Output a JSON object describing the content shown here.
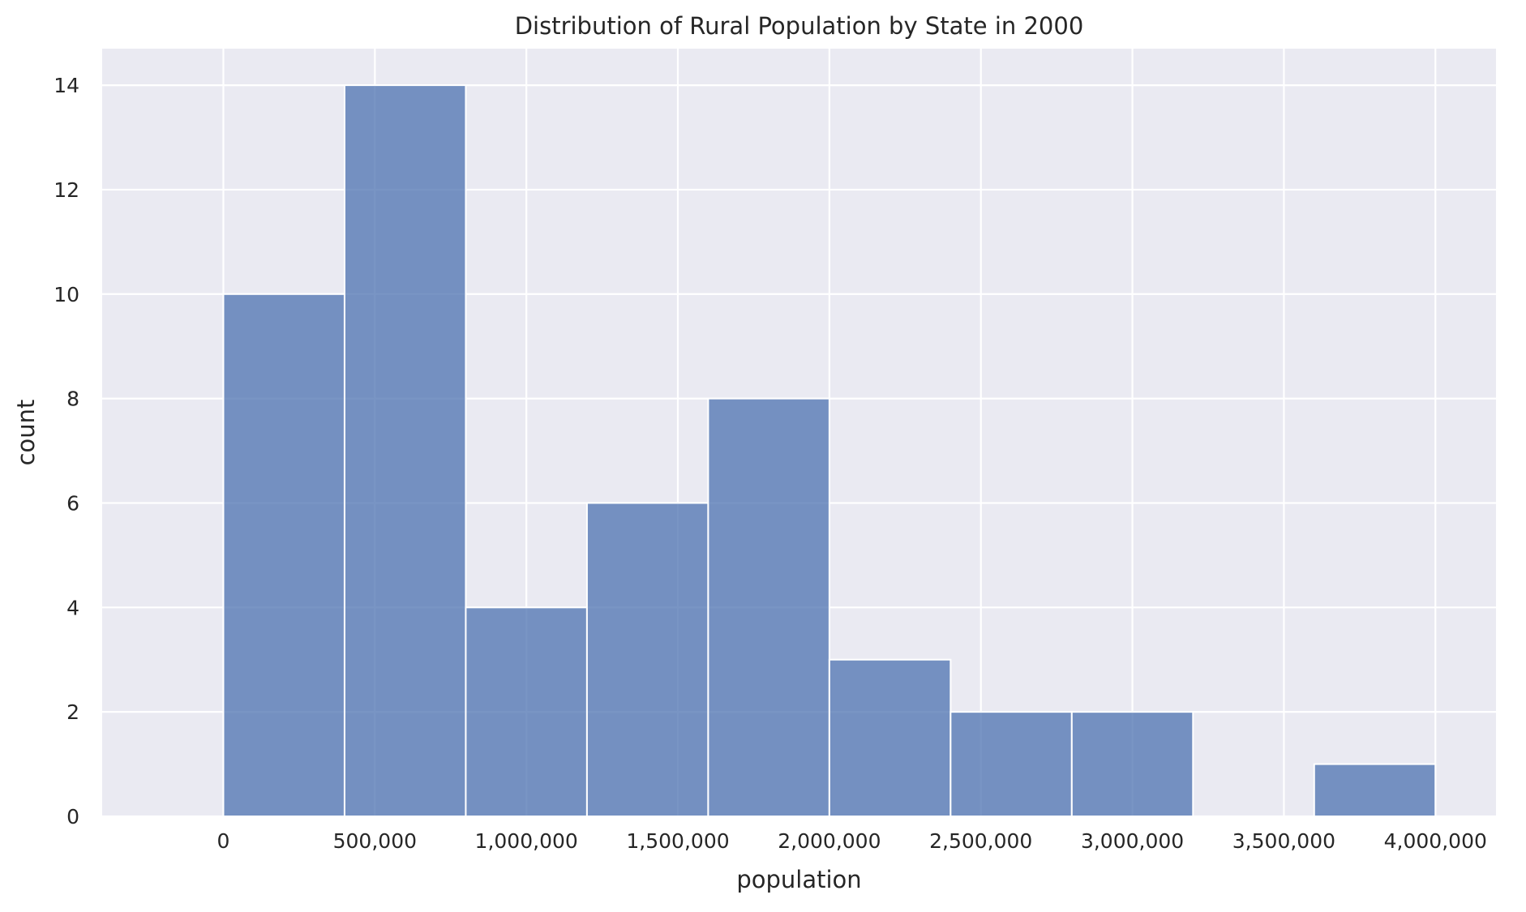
{
  "chart_data": {
    "type": "bar",
    "title": "Distribution of Rural Population by State in 2000",
    "xlabel": "population",
    "ylabel": "count",
    "xlim": [
      -400000,
      4200000
    ],
    "ylim": [
      0,
      14.7
    ],
    "x_ticks": [
      0,
      500000,
      1000000,
      1500000,
      2000000,
      2500000,
      3000000,
      3500000,
      4000000
    ],
    "x_tick_labels": [
      "0",
      "500,000",
      "1,000,000",
      "1,500,000",
      "2,000,000",
      "2,500,000",
      "3,000,000",
      "3,500,000",
      "4,000,000"
    ],
    "y_ticks": [
      0,
      2,
      4,
      6,
      8,
      10,
      12,
      14
    ],
    "y_tick_labels": [
      "0",
      "2",
      "4",
      "6",
      "8",
      "10",
      "12",
      "14"
    ],
    "bins": [
      {
        "start": 0,
        "end": 400000,
        "count": 10
      },
      {
        "start": 400000,
        "end": 800000,
        "count": 14
      },
      {
        "start": 800000,
        "end": 1200000,
        "count": 4
      },
      {
        "start": 1200000,
        "end": 1600000,
        "count": 6
      },
      {
        "start": 1600000,
        "end": 2000000,
        "count": 8
      },
      {
        "start": 2000000,
        "end": 2400000,
        "count": 3
      },
      {
        "start": 2400000,
        "end": 2800000,
        "count": 2
      },
      {
        "start": 2800000,
        "end": 3200000,
        "count": 2
      },
      {
        "start": 3200000,
        "end": 3600000,
        "count": 0
      },
      {
        "start": 3600000,
        "end": 4000000,
        "count": 1
      }
    ],
    "grid": true,
    "legend": "none",
    "colors": {
      "bar_fill": "#4C72B0",
      "bar_opacity": 0.75,
      "plot_background": "#EAEAF2",
      "grid": "#FFFFFF"
    }
  }
}
